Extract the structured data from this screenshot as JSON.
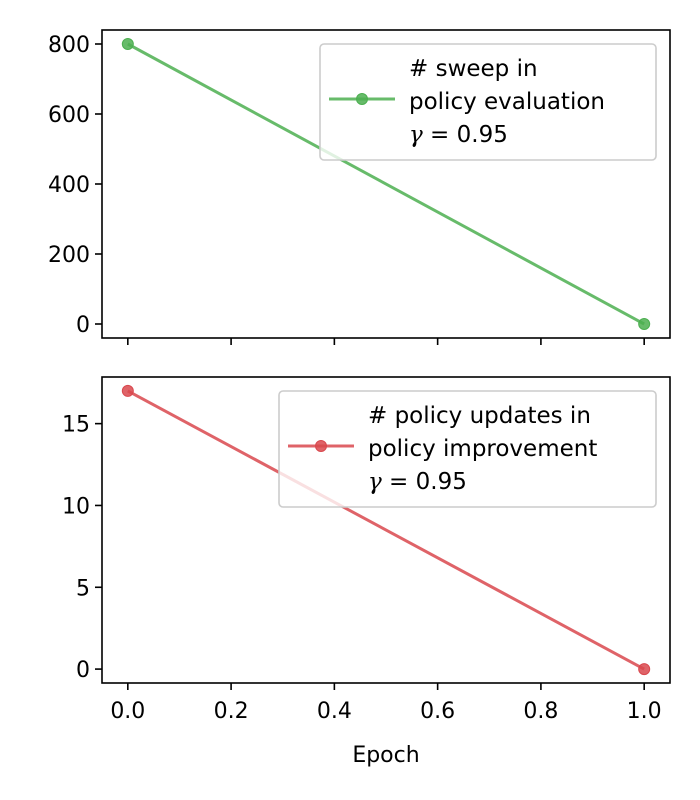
{
  "chart_data": [
    {
      "type": "line",
      "x": [
        0.0,
        1.0
      ],
      "series": [
        {
          "name": "# sweep in policy evaluation γ = 0.95",
          "legend_lines": [
            "# sweep in",
            "policy evaluation"
          ],
          "gamma_symbol": "γ",
          "gamma_rest": " = 0.95",
          "values": [
            800,
            0
          ],
          "color": "#4caf50"
        }
      ],
      "xlim": [
        -0.05,
        1.05
      ],
      "ylim": [
        -40,
        840
      ],
      "xticks": [
        0.0,
        0.2,
        0.4,
        0.6,
        0.8,
        1.0
      ],
      "xtick_labels_shown": false,
      "yticks": [
        0,
        200,
        400,
        600,
        800
      ],
      "ytick_labels": [
        "0",
        "200",
        "400",
        "600",
        "800"
      ],
      "legend_position": "upper-right",
      "grid": false
    },
    {
      "type": "line",
      "x": [
        0.0,
        1.0
      ],
      "series": [
        {
          "name": "# policy updates in policy improvement γ = 0.95",
          "legend_lines": [
            "# policy updates in",
            "policy improvement"
          ],
          "gamma_symbol": "γ",
          "gamma_rest": " = 0.95",
          "values": [
            17,
            0
          ],
          "color": "#d9484e"
        }
      ],
      "xlim": [
        -0.05,
        1.05
      ],
      "ylim": [
        -0.85,
        17.85
      ],
      "xticks": [
        0.0,
        0.2,
        0.4,
        0.6,
        0.8,
        1.0
      ],
      "xtick_labels": [
        "0.0",
        "0.2",
        "0.4",
        "0.6",
        "0.8",
        "1.0"
      ],
      "xtick_labels_shown": true,
      "yticks": [
        0,
        5,
        10,
        15
      ],
      "ytick_labels": [
        "0",
        "5",
        "10",
        "15"
      ],
      "xlabel": "Epoch",
      "legend_position": "upper-right",
      "grid": false
    }
  ]
}
